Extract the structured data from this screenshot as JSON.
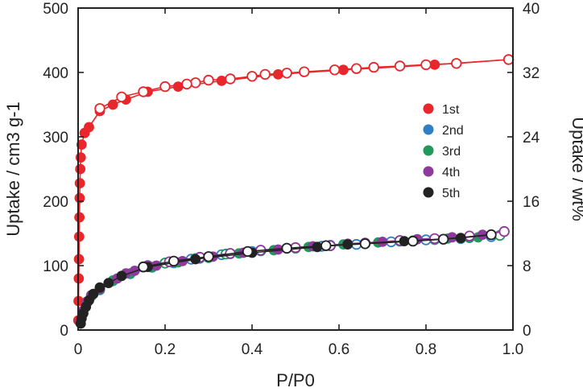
{
  "chart_data": {
    "type": "line",
    "xlabel": "P/P0",
    "ylabel": "Uptake / cm3 g-1",
    "ylabel_right": "Uptake / wt%",
    "xlim": [
      0,
      1.0
    ],
    "ylim": [
      0,
      500
    ],
    "ylim_right": [
      0,
      40
    ],
    "x_ticks": [
      "0",
      "0.2",
      "0.4",
      "0.6",
      "0.8",
      "1.0"
    ],
    "y_ticks": [
      "0",
      "100",
      "200",
      "300",
      "400",
      "500"
    ],
    "y_ticks_right": [
      "0",
      "8",
      "16",
      "24",
      "32",
      "40"
    ],
    "legend_position": "right-middle",
    "series": [
      {
        "name": "1st",
        "color": "#e8262b",
        "adsorption": [
          [
            0.0005,
            15
          ],
          [
            0.001,
            45
          ],
          [
            0.0015,
            80
          ],
          [
            0.002,
            110
          ],
          [
            0.0025,
            145
          ],
          [
            0.003,
            175
          ],
          [
            0.0035,
            205
          ],
          [
            0.004,
            228
          ],
          [
            0.005,
            250
          ],
          [
            0.006,
            268
          ],
          [
            0.008,
            288
          ],
          [
            0.015,
            306
          ],
          [
            0.025,
            315
          ],
          [
            0.05,
            340
          ],
          [
            0.08,
            350
          ],
          [
            0.11,
            358
          ],
          [
            0.16,
            370
          ],
          [
            0.23,
            378
          ],
          [
            0.33,
            387
          ],
          [
            0.46,
            397
          ],
          [
            0.61,
            404
          ],
          [
            0.82,
            412
          ],
          [
            0.99,
            420
          ]
        ],
        "desorption": [
          [
            0.99,
            420
          ],
          [
            0.87,
            414
          ],
          [
            0.8,
            412
          ],
          [
            0.74,
            410
          ],
          [
            0.68,
            408
          ],
          [
            0.64,
            406
          ],
          [
            0.59,
            404
          ],
          [
            0.52,
            401
          ],
          [
            0.48,
            399
          ],
          [
            0.43,
            397
          ],
          [
            0.4,
            394
          ],
          [
            0.35,
            390
          ],
          [
            0.3,
            388
          ],
          [
            0.27,
            384
          ],
          [
            0.25,
            382
          ],
          [
            0.2,
            378
          ],
          [
            0.15,
            370
          ],
          [
            0.1,
            362
          ],
          [
            0.05,
            344
          ]
        ]
      },
      {
        "name": "2nd",
        "color": "#2f7fc2",
        "adsorption": [
          [
            0.005,
            12
          ],
          [
            0.01,
            28
          ],
          [
            0.02,
            42
          ],
          [
            0.03,
            52
          ],
          [
            0.05,
            62
          ],
          [
            0.08,
            76
          ],
          [
            0.12,
            87
          ],
          [
            0.17,
            97
          ],
          [
            0.22,
            104
          ],
          [
            0.28,
            111
          ],
          [
            0.35,
            118
          ],
          [
            0.42,
            123
          ],
          [
            0.5,
            128
          ],
          [
            0.58,
            132
          ],
          [
            0.66,
            135
          ],
          [
            0.74,
            138
          ],
          [
            0.82,
            140
          ],
          [
            0.9,
            143
          ],
          [
            0.95,
            145
          ]
        ],
        "desorption": [
          [
            0.95,
            145
          ],
          [
            0.88,
            142
          ],
          [
            0.8,
            140
          ],
          [
            0.72,
            137
          ],
          [
            0.64,
            133
          ],
          [
            0.56,
            130
          ],
          [
            0.48,
            127
          ],
          [
            0.4,
            122
          ],
          [
            0.33,
            117
          ],
          [
            0.26,
            110
          ],
          [
            0.2,
            104
          ],
          [
            0.15,
            98
          ]
        ]
      },
      {
        "name": "3rd",
        "color": "#1f9a5a",
        "adsorption": [
          [
            0.005,
            12
          ],
          [
            0.01,
            27
          ],
          [
            0.02,
            42
          ],
          [
            0.03,
            53
          ],
          [
            0.05,
            63
          ],
          [
            0.08,
            77
          ],
          [
            0.12,
            88
          ],
          [
            0.17,
            98
          ],
          [
            0.23,
            105
          ],
          [
            0.3,
            112
          ],
          [
            0.37,
            119
          ],
          [
            0.45,
            124
          ],
          [
            0.53,
            129
          ],
          [
            0.61,
            133
          ],
          [
            0.69,
            136
          ],
          [
            0.77,
            139
          ],
          [
            0.85,
            142
          ],
          [
            0.92,
            144
          ],
          [
            0.97,
            147
          ]
        ],
        "desorption": [
          [
            0.97,
            147
          ],
          [
            0.9,
            144
          ],
          [
            0.82,
            141
          ],
          [
            0.74,
            138
          ],
          [
            0.66,
            134
          ],
          [
            0.58,
            131
          ],
          [
            0.5,
            127
          ],
          [
            0.42,
            123
          ],
          [
            0.34,
            118
          ],
          [
            0.27,
            111
          ],
          [
            0.2,
            104
          ],
          [
            0.15,
            98
          ]
        ]
      },
      {
        "name": "4th",
        "color": "#8e3a9c",
        "adsorption": [
          [
            0.005,
            12
          ],
          [
            0.01,
            29
          ],
          [
            0.02,
            44
          ],
          [
            0.03,
            54
          ],
          [
            0.05,
            64
          ],
          [
            0.09,
            80
          ],
          [
            0.11,
            88
          ],
          [
            0.13,
            92
          ],
          [
            0.18,
            100
          ],
          [
            0.24,
            107
          ],
          [
            0.31,
            114
          ],
          [
            0.38,
            120
          ],
          [
            0.46,
            125
          ],
          [
            0.54,
            130
          ],
          [
            0.62,
            134
          ],
          [
            0.7,
            137
          ],
          [
            0.78,
            141
          ],
          [
            0.86,
            144
          ],
          [
            0.93,
            148
          ],
          [
            0.98,
            153
          ]
        ],
        "desorption": [
          [
            0.98,
            153
          ],
          [
            0.9,
            146
          ],
          [
            0.82,
            142
          ],
          [
            0.74,
            139
          ],
          [
            0.66,
            135
          ],
          [
            0.58,
            131
          ],
          [
            0.5,
            128
          ],
          [
            0.42,
            124
          ],
          [
            0.35,
            119
          ],
          [
            0.28,
            113
          ],
          [
            0.21,
            106
          ],
          [
            0.16,
            100
          ]
        ]
      },
      {
        "name": "5th",
        "color": "#222222",
        "adsorption": [
          [
            0.006,
            10
          ],
          [
            0.008,
            18
          ],
          [
            0.012,
            26
          ],
          [
            0.018,
            36
          ],
          [
            0.025,
            46
          ],
          [
            0.035,
            56
          ],
          [
            0.05,
            66
          ],
          [
            0.07,
            73
          ],
          [
            0.1,
            84
          ],
          [
            0.16,
            98
          ],
          [
            0.27,
            110
          ],
          [
            0.4,
            120
          ],
          [
            0.55,
            129
          ],
          [
            0.62,
            133
          ],
          [
            0.75,
            138
          ],
          [
            0.88,
            143
          ],
          [
            0.95,
            148
          ]
        ],
        "desorption": [
          [
            0.95,
            148
          ],
          [
            0.84,
            141
          ],
          [
            0.77,
            138
          ],
          [
            0.66,
            134
          ],
          [
            0.57,
            131
          ],
          [
            0.48,
            127
          ],
          [
            0.39,
            122
          ],
          [
            0.3,
            114
          ],
          [
            0.22,
            107
          ],
          [
            0.15,
            98
          ]
        ]
      }
    ]
  }
}
